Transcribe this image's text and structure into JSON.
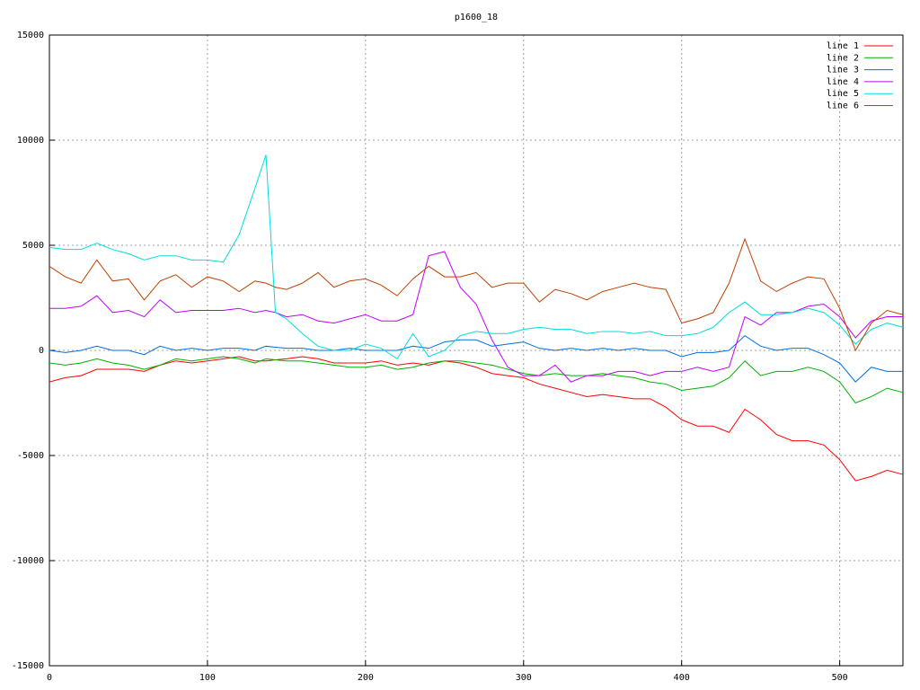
{
  "chart_data": {
    "type": "line",
    "title": "p1600_18",
    "x": [
      0,
      10,
      20,
      30,
      40,
      50,
      60,
      70,
      80,
      90,
      100,
      110,
      120,
      130,
      137,
      143,
      150,
      160,
      170,
      180,
      190,
      200,
      210,
      220,
      230,
      240,
      250,
      260,
      270,
      280,
      290,
      300,
      310,
      320,
      330,
      340,
      350,
      360,
      370,
      380,
      390,
      400,
      410,
      420,
      430,
      440,
      450,
      460,
      470,
      480,
      490,
      500,
      510,
      520,
      530,
      540
    ],
    "series": [
      {
        "name": "line 1",
        "color": "#ff0000",
        "values": [
          -1500,
          -1300,
          -1200,
          -900,
          -900,
          -900,
          -1000,
          -700,
          -500,
          -600,
          -500,
          -400,
          -300,
          -500,
          -500,
          -450,
          -400,
          -300,
          -400,
          -600,
          -600,
          -600,
          -500,
          -700,
          -600,
          -700,
          -500,
          -600,
          -800,
          -1100,
          -1200,
          -1300,
          -1600,
          -1800,
          -2000,
          -2200,
          -2100,
          -2200,
          -2300,
          -2300,
          -2700,
          -3300,
          -3600,
          -3600,
          -3900,
          -2800,
          -3300,
          -4000,
          -4300,
          -4300,
          -4500,
          -5200,
          -6200,
          -6000,
          -5700,
          -5900
        ]
      },
      {
        "name": "line 2",
        "color": "#00b000",
        "values": [
          -600,
          -700,
          -600,
          -400,
          -600,
          -700,
          -900,
          -700,
          -400,
          -500,
          -400,
          -300,
          -400,
          -600,
          -400,
          -450,
          -500,
          -500,
          -600,
          -700,
          -800,
          -800,
          -700,
          -900,
          -800,
          -600,
          -500,
          -500,
          -600,
          -700,
          -900,
          -1100,
          -1200,
          -1100,
          -1200,
          -1200,
          -1100,
          -1200,
          -1300,
          -1500,
          -1600,
          -1900,
          -1800,
          -1700,
          -1300,
          -500,
          -1200,
          -1000,
          -1000,
          -800,
          -1000,
          -1500,
          -2500,
          -2200,
          -1800,
          -2000
        ]
      },
      {
        "name": "line 3",
        "color": "#0070e0",
        "values": [
          0,
          -100,
          0,
          200,
          0,
          0,
          -200,
          200,
          0,
          100,
          0,
          100,
          100,
          0,
          200,
          150,
          100,
          100,
          0,
          0,
          100,
          0,
          0,
          0,
          200,
          100,
          400,
          500,
          500,
          200,
          300,
          400,
          100,
          0,
          100,
          0,
          100,
          0,
          100,
          0,
          0,
          -300,
          -100,
          -100,
          0,
          700,
          200,
          0,
          100,
          100,
          -200,
          -600,
          -1500,
          -800,
          -1000,
          -1000
        ]
      },
      {
        "name": "line 4",
        "color": "#c000ff",
        "values": [
          2000,
          2000,
          2100,
          2600,
          1800,
          1900,
          1600,
          2400,
          1800,
          1900,
          1900,
          1900,
          2000,
          1800,
          1900,
          1800,
          1600,
          1700,
          1400,
          1300,
          1500,
          1700,
          1400,
          1400,
          1700,
          4500,
          4700,
          3000,
          2200,
          500,
          -800,
          -1200,
          -1200,
          -700,
          -1500,
          -1200,
          -1200,
          -1000,
          -1000,
          -1200,
          -1000,
          -1000,
          -800,
          -1000,
          -800,
          1600,
          1200,
          1800,
          1800,
          2100,
          2200,
          1600,
          600,
          1400,
          1600,
          1600
        ]
      },
      {
        "name": "line 5",
        "color": "#00dddd",
        "values": [
          4900,
          4800,
          4800,
          5100,
          4800,
          4600,
          4300,
          4500,
          4500,
          4300,
          4300,
          4200,
          5500,
          7700,
          9300,
          1800,
          1500,
          800,
          200,
          0,
          0,
          300,
          100,
          -400,
          800,
          -300,
          0,
          700,
          900,
          800,
          800,
          1000,
          1100,
          1000,
          1000,
          800,
          900,
          900,
          800,
          900,
          700,
          700,
          800,
          1100,
          1800,
          2300,
          1700,
          1700,
          1800,
          2000,
          1800,
          1200,
          300,
          1000,
          1300,
          1100
        ]
      },
      {
        "name": "line 6",
        "color": "#c04000",
        "values": [
          4000,
          3500,
          3200,
          4300,
          3300,
          3400,
          2400,
          3300,
          3600,
          3000,
          3500,
          3300,
          2800,
          3300,
          3200,
          3000,
          2900,
          3200,
          3700,
          3000,
          3300,
          3400,
          3100,
          2600,
          3400,
          4000,
          3500,
          3500,
          3700,
          3000,
          3200,
          3200,
          2300,
          2900,
          2700,
          2400,
          2800,
          3000,
          3200,
          3000,
          2900,
          1300,
          1500,
          1800,
          3200,
          5300,
          3300,
          2800,
          3200,
          3500,
          3400,
          2000,
          0,
          1300,
          1900,
          1700
        ]
      }
    ],
    "xlim": [
      0,
      540
    ],
    "ylim": [
      -15000,
      15000
    ],
    "xticks": [
      0,
      100,
      200,
      300,
      400,
      500
    ],
    "yticks": [
      -15000,
      -10000,
      -5000,
      0,
      5000,
      10000,
      15000
    ],
    "grid": true,
    "legend": "top-right"
  }
}
